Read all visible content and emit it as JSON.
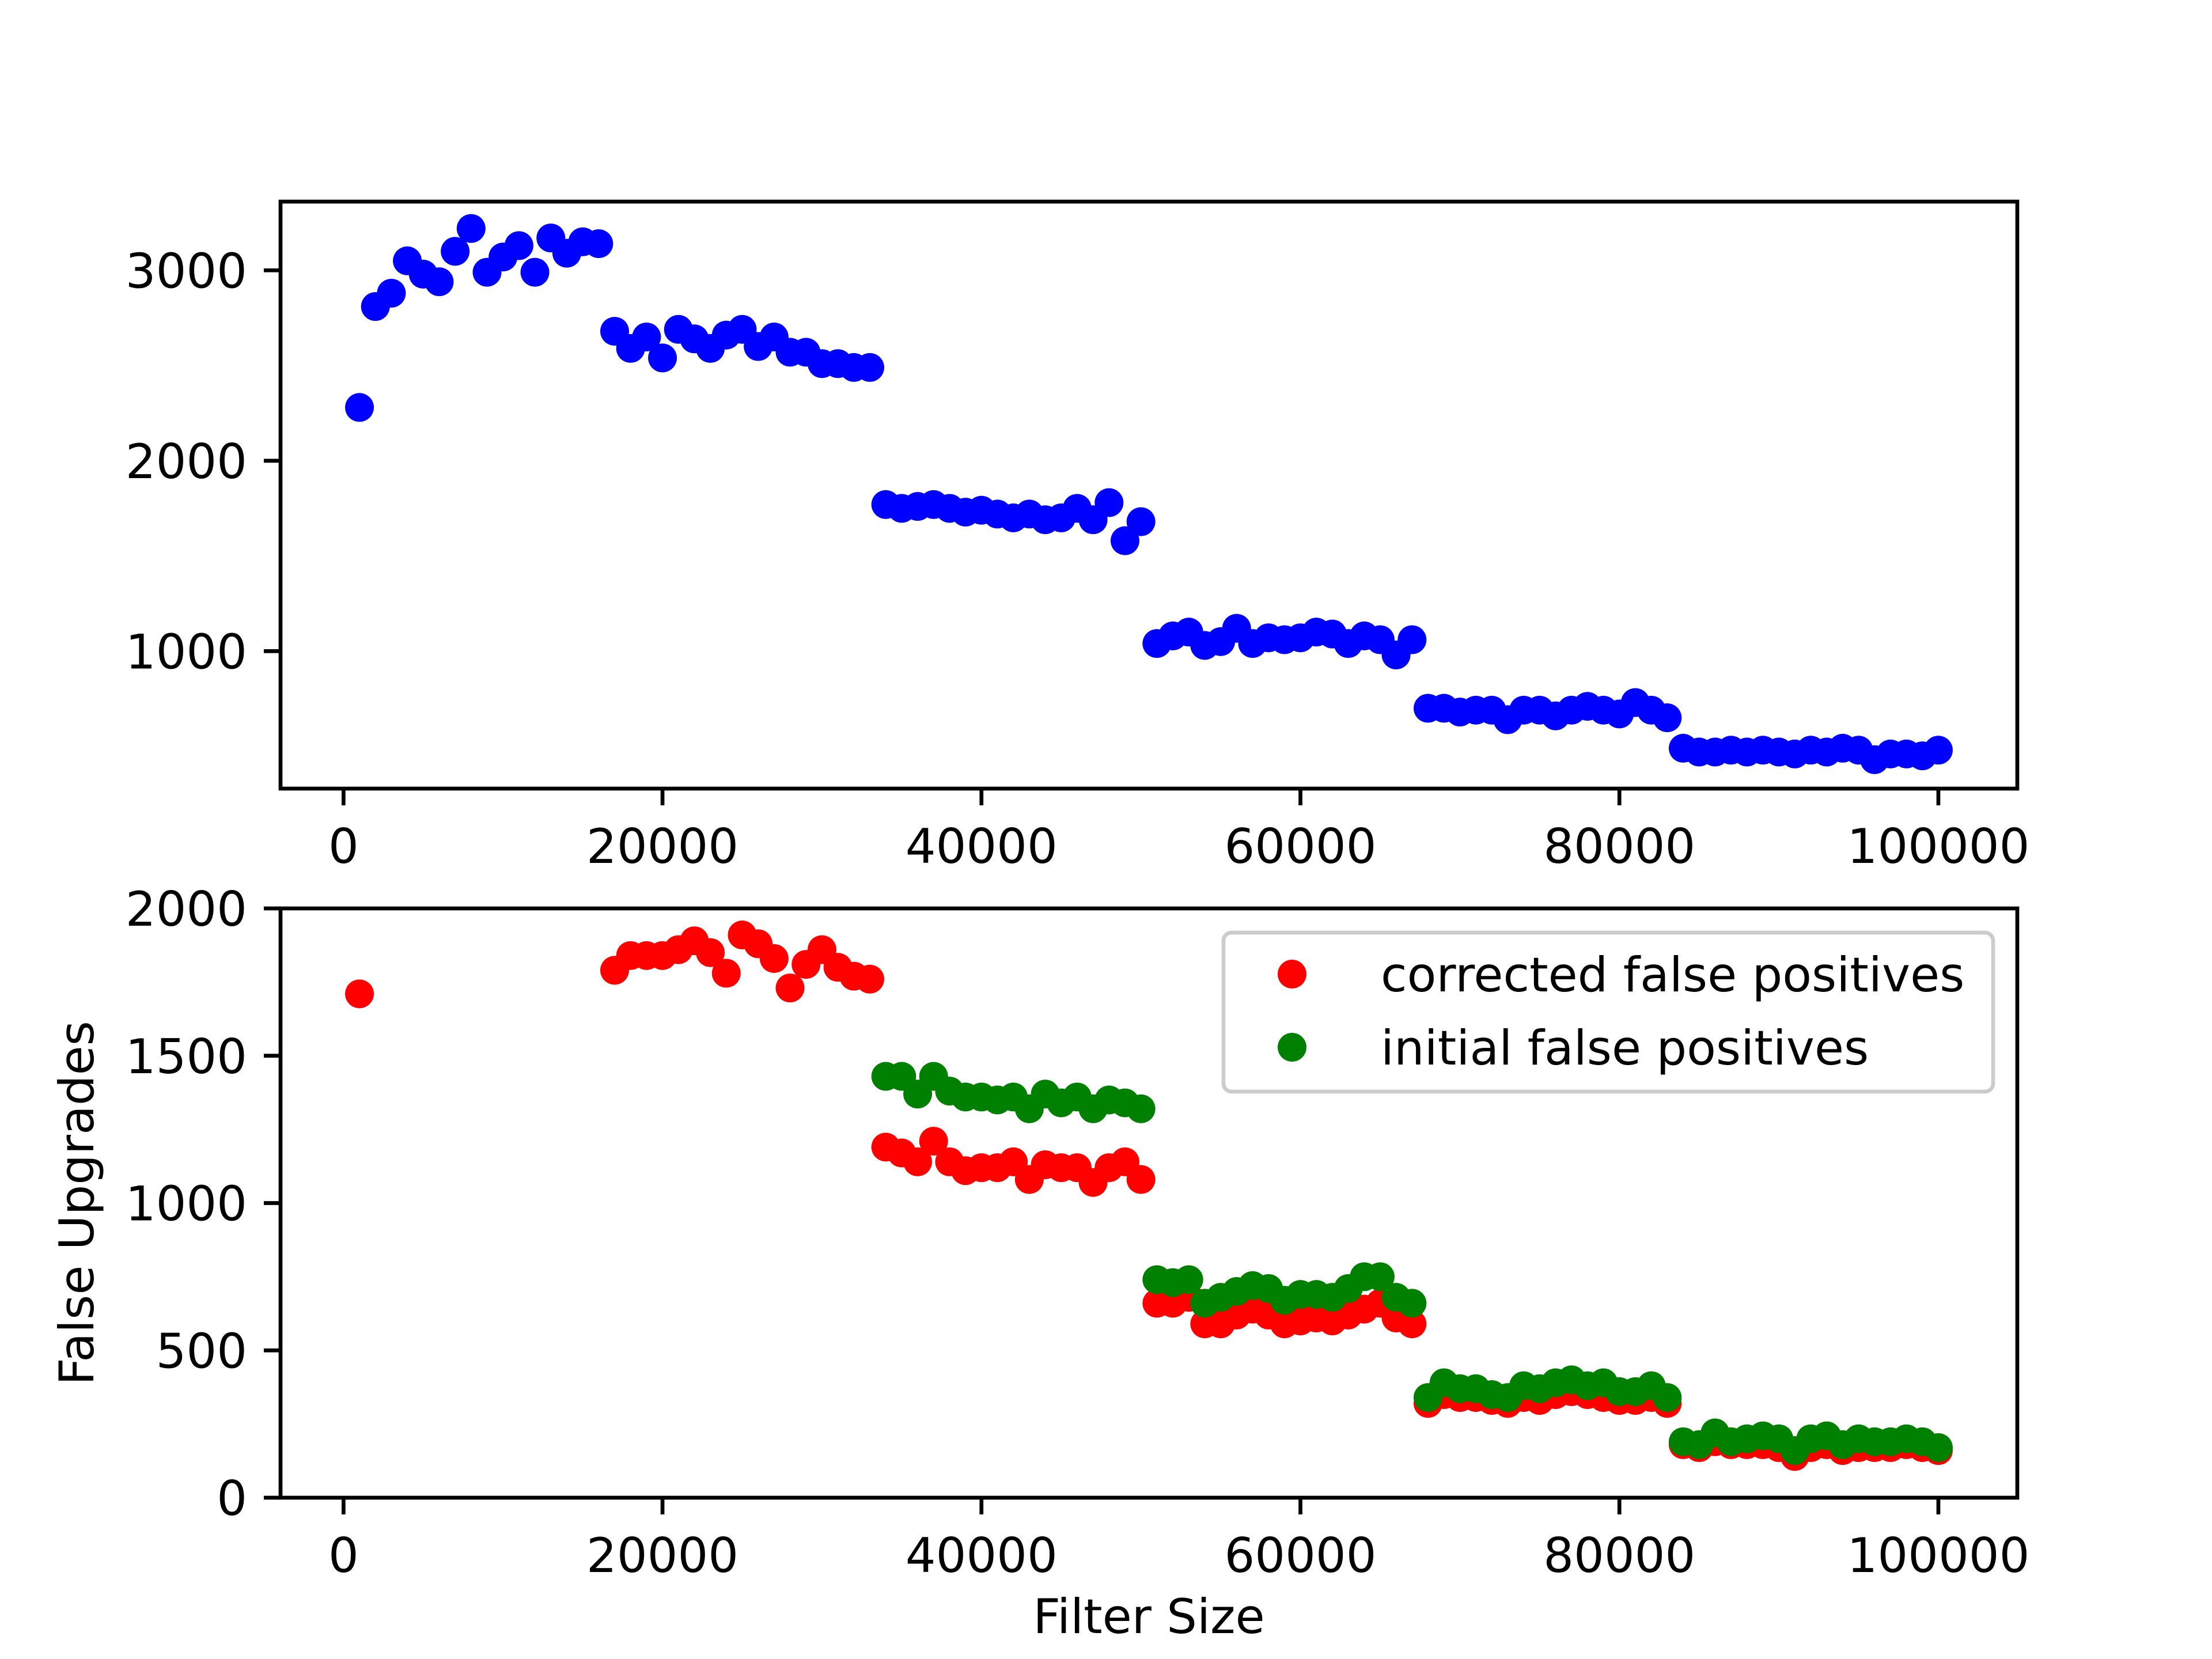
{
  "chart_data": [
    {
      "type": "scatter",
      "color": "#0000ff",
      "x": [
        1000,
        2000,
        3000,
        4000,
        5000,
        6000,
        7000,
        8000,
        9000,
        10000,
        11000,
        12000,
        13000,
        14000,
        15000,
        16000,
        17000,
        18000,
        19000,
        20000,
        21000,
        22000,
        23000,
        24000,
        25000,
        26000,
        27000,
        28000,
        29000,
        30000,
        31000,
        32000,
        33000,
        34000,
        35000,
        36000,
        37000,
        38000,
        39000,
        40000,
        41000,
        42000,
        43000,
        44000,
        45000,
        46000,
        47000,
        48000,
        49000,
        50000,
        51000,
        52000,
        53000,
        54000,
        55000,
        56000,
        57000,
        58000,
        59000,
        60000,
        61000,
        62000,
        63000,
        64000,
        65000,
        66000,
        67000,
        68000,
        69000,
        70000,
        71000,
        72000,
        73000,
        74000,
        75000,
        76000,
        77000,
        78000,
        79000,
        80000,
        81000,
        82000,
        83000,
        84000,
        85000,
        86000,
        87000,
        88000,
        89000,
        90000,
        91000,
        92000,
        93000,
        94000,
        95000,
        96000,
        97000,
        98000,
        99000,
        100000
      ],
      "values": [
        2280,
        2810,
        2880,
        3050,
        2980,
        2940,
        3100,
        3220,
        2990,
        3070,
        3130,
        2990,
        3170,
        3090,
        3150,
        3140,
        2680,
        2590,
        2650,
        2540,
        2690,
        2640,
        2590,
        2660,
        2690,
        2600,
        2650,
        2570,
        2570,
        2510,
        2510,
        2490,
        2490,
        1770,
        1750,
        1760,
        1770,
        1750,
        1730,
        1740,
        1720,
        1700,
        1720,
        1690,
        1700,
        1750,
        1690,
        1780,
        1580,
        1680,
        1040,
        1080,
        1100,
        1030,
        1050,
        1120,
        1040,
        1070,
        1060,
        1070,
        1100,
        1090,
        1040,
        1080,
        1060,
        980,
        1060,
        700,
        700,
        680,
        690,
        690,
        640,
        690,
        690,
        660,
        690,
        710,
        690,
        670,
        730,
        690,
        650,
        490,
        470,
        470,
        480,
        470,
        480,
        470,
        460,
        480,
        470,
        490,
        480,
        430,
        460,
        460,
        450,
        480
      ],
      "xlim": [
        -3950,
        104950
      ],
      "ylim": [
        278,
        3361
      ],
      "xticks": [
        0,
        20000,
        40000,
        60000,
        80000,
        100000
      ],
      "yticks": [
        1000,
        2000,
        3000
      ]
    },
    {
      "type": "scatter",
      "x_label": "Filter Size",
      "y_label": "False Upgrades",
      "legend": "upper right",
      "series": [
        {
          "name": "corrected false positives",
          "color": "#ff0000",
          "x": [
            1000,
            17000,
            18000,
            19000,
            20000,
            21000,
            22000,
            23000,
            24000,
            25000,
            26000,
            27000,
            28000,
            29000,
            30000,
            31000,
            32000,
            33000,
            34000,
            35000,
            36000,
            37000,
            38000,
            39000,
            40000,
            41000,
            42000,
            43000,
            44000,
            45000,
            46000,
            47000,
            48000,
            49000,
            50000,
            51000,
            52000,
            53000,
            54000,
            55000,
            56000,
            57000,
            58000,
            59000,
            60000,
            61000,
            62000,
            63000,
            64000,
            65000,
            66000,
            67000,
            68000,
            69000,
            70000,
            71000,
            72000,
            73000,
            74000,
            75000,
            76000,
            77000,
            78000,
            79000,
            80000,
            81000,
            82000,
            83000,
            84000,
            85000,
            86000,
            87000,
            88000,
            89000,
            90000,
            91000,
            92000,
            93000,
            94000,
            95000,
            96000,
            97000,
            98000,
            99000,
            100000
          ],
          "values": [
            1710,
            1790,
            1840,
            1840,
            1840,
            1860,
            1890,
            1850,
            1780,
            1910,
            1880,
            1830,
            1730,
            1810,
            1860,
            1800,
            1770,
            1760,
            1190,
            1170,
            1140,
            1210,
            1140,
            1110,
            1120,
            1120,
            1140,
            1080,
            1130,
            1120,
            1120,
            1070,
            1120,
            1140,
            1080,
            660,
            660,
            680,
            590,
            590,
            620,
            640,
            620,
            590,
            600,
            610,
            600,
            620,
            640,
            660,
            610,
            590,
            320,
            350,
            340,
            340,
            330,
            320,
            340,
            330,
            350,
            360,
            350,
            340,
            330,
            330,
            340,
            320,
            180,
            170,
            190,
            180,
            180,
            180,
            170,
            140,
            170,
            180,
            160,
            170,
            170,
            170,
            180,
            170,
            160
          ]
        },
        {
          "name": "initial false positives",
          "color": "#008000",
          "x": [
            34000,
            35000,
            36000,
            37000,
            38000,
            39000,
            40000,
            41000,
            42000,
            43000,
            44000,
            45000,
            46000,
            47000,
            48000,
            49000,
            50000,
            51000,
            52000,
            53000,
            54000,
            55000,
            56000,
            57000,
            58000,
            59000,
            60000,
            61000,
            62000,
            63000,
            64000,
            65000,
            66000,
            67000,
            68000,
            69000,
            70000,
            71000,
            72000,
            73000,
            74000,
            75000,
            76000,
            77000,
            78000,
            79000,
            80000,
            81000,
            82000,
            83000,
            84000,
            85000,
            86000,
            87000,
            88000,
            89000,
            90000,
            91000,
            92000,
            93000,
            94000,
            95000,
            96000,
            97000,
            98000,
            99000,
            100000
          ],
          "values": [
            1430,
            1430,
            1370,
            1430,
            1380,
            1360,
            1360,
            1350,
            1360,
            1320,
            1370,
            1340,
            1360,
            1320,
            1350,
            1340,
            1320,
            740,
            730,
            740,
            660,
            680,
            700,
            720,
            710,
            670,
            690,
            690,
            680,
            710,
            750,
            750,
            680,
            660,
            340,
            390,
            370,
            370,
            350,
            340,
            380,
            370,
            390,
            400,
            380,
            390,
            360,
            360,
            380,
            340,
            190,
            180,
            220,
            190,
            200,
            210,
            200,
            160,
            200,
            210,
            180,
            200,
            190,
            190,
            200,
            190,
            170
          ]
        }
      ],
      "xlim": [
        -3950,
        104950
      ],
      "ylim": [
        0,
        2000
      ],
      "xticks": [
        0,
        20000,
        40000,
        60000,
        80000,
        100000
      ],
      "yticks": [
        0,
        500,
        1000,
        1500,
        2000
      ]
    }
  ]
}
